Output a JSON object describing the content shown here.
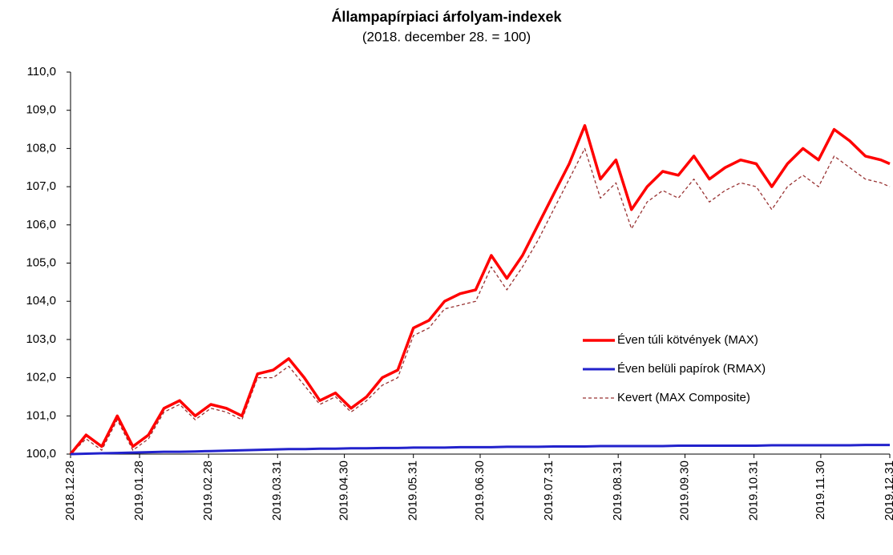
{
  "chart_data": {
    "type": "line",
    "title": "Állampapírpiaci árfolyam-indexek",
    "subtitle": "(2018. december 28. = 100)",
    "x": [
      "2018.12.28",
      "2019.01.04",
      "2019.01.11",
      "2019.01.18",
      "2019.01.25",
      "2019.02.01",
      "2019.02.08",
      "2019.02.15",
      "2019.02.22",
      "2019.03.01",
      "2019.03.08",
      "2019.03.15",
      "2019.03.22",
      "2019.03.29",
      "2019.04.05",
      "2019.04.12",
      "2019.04.19",
      "2019.04.26",
      "2019.05.03",
      "2019.05.10",
      "2019.05.17",
      "2019.05.24",
      "2019.05.31",
      "2019.06.07",
      "2019.06.14",
      "2019.06.21",
      "2019.06.28",
      "2019.07.05",
      "2019.07.12",
      "2019.07.19",
      "2019.07.26",
      "2019.08.02",
      "2019.08.09",
      "2019.08.16",
      "2019.08.23",
      "2019.08.30",
      "2019.09.06",
      "2019.09.13",
      "2019.09.20",
      "2019.09.27",
      "2019.10.04",
      "2019.10.11",
      "2019.10.18",
      "2019.10.25",
      "2019.11.01",
      "2019.11.08",
      "2019.11.15",
      "2019.11.22",
      "2019.11.29",
      "2019.12.06",
      "2019.12.13",
      "2019.12.20",
      "2019.12.27",
      "2019.12.31"
    ],
    "series": [
      {
        "name": "Éven túli kötvények (MAX)",
        "color": "#ff0000",
        "style": "solid",
        "width": 3.5,
        "values": [
          100.0,
          100.5,
          100.2,
          101.0,
          100.2,
          100.5,
          101.2,
          101.4,
          101.0,
          101.3,
          101.2,
          101.0,
          102.1,
          102.2,
          102.5,
          102.0,
          101.4,
          101.6,
          101.2,
          101.5,
          102.0,
          102.2,
          103.3,
          103.5,
          104.0,
          104.2,
          104.3,
          105.2,
          104.6,
          105.2,
          106.0,
          106.8,
          107.6,
          108.6,
          107.2,
          107.7,
          106.4,
          107.0,
          107.4,
          107.3,
          107.8,
          107.2,
          107.5,
          107.7,
          107.6,
          107.0,
          107.6,
          108.0,
          107.7,
          108.5,
          108.2,
          107.8,
          107.7,
          107.6
        ]
      },
      {
        "name": "Éven belüli papírok (RMAX)",
        "color": "#2222cc",
        "style": "solid",
        "width": 3,
        "values": [
          100.0,
          100.01,
          100.02,
          100.03,
          100.04,
          100.05,
          100.06,
          100.06,
          100.07,
          100.08,
          100.09,
          100.1,
          100.11,
          100.12,
          100.13,
          100.13,
          100.14,
          100.14,
          100.15,
          100.15,
          100.16,
          100.16,
          100.17,
          100.17,
          100.17,
          100.18,
          100.18,
          100.18,
          100.19,
          100.19,
          100.19,
          100.2,
          100.2,
          100.2,
          100.21,
          100.21,
          100.21,
          100.21,
          100.21,
          100.22,
          100.22,
          100.22,
          100.22,
          100.22,
          100.22,
          100.23,
          100.23,
          100.23,
          100.23,
          100.23,
          100.23,
          100.24,
          100.24,
          100.24
        ]
      },
      {
        "name": "Kevert (MAX Composite)",
        "color": "#993333",
        "style": "dashed",
        "width": 1.3,
        "values": [
          100.0,
          100.4,
          100.1,
          100.9,
          100.1,
          100.4,
          101.1,
          101.3,
          100.9,
          101.2,
          101.1,
          100.9,
          102.0,
          102.0,
          102.3,
          101.8,
          101.3,
          101.5,
          101.1,
          101.4,
          101.8,
          102.0,
          103.1,
          103.3,
          103.8,
          103.9,
          104.0,
          104.9,
          104.3,
          104.9,
          105.6,
          106.4,
          107.2,
          108.0,
          106.7,
          107.1,
          105.9,
          106.6,
          106.9,
          106.7,
          107.2,
          106.6,
          106.9,
          107.1,
          107.0,
          106.4,
          107.0,
          107.3,
          107.0,
          107.8,
          107.5,
          107.2,
          107.1,
          107.0
        ]
      }
    ],
    "xlim": [
      "2018.12.28",
      "2019.12.31"
    ],
    "xticks": [
      "2018.12.28",
      "2019.01.28",
      "2019.02.28",
      "2019.03.31",
      "2019.04.30",
      "2019.05.31",
      "2019.06.30",
      "2019.07.31",
      "2019.08.31",
      "2019.09.30",
      "2019.10.31",
      "2019.11.30",
      "2019.12.31"
    ],
    "ylim": [
      100,
      110
    ],
    "yticks": [
      {
        "value": 100,
        "label": "100,0"
      },
      {
        "value": 101,
        "label": "101,0"
      },
      {
        "value": 102,
        "label": "102,0"
      },
      {
        "value": 103,
        "label": "103,0"
      },
      {
        "value": 104,
        "label": "104,0"
      },
      {
        "value": 105,
        "label": "105,0"
      },
      {
        "value": 106,
        "label": "106,0"
      },
      {
        "value": 107,
        "label": "107,0"
      },
      {
        "value": 108,
        "label": "108,0"
      },
      {
        "value": 109,
        "label": "109,0"
      },
      {
        "value": 110,
        "label": "110,0"
      }
    ],
    "grid": false,
    "legend": "right"
  }
}
